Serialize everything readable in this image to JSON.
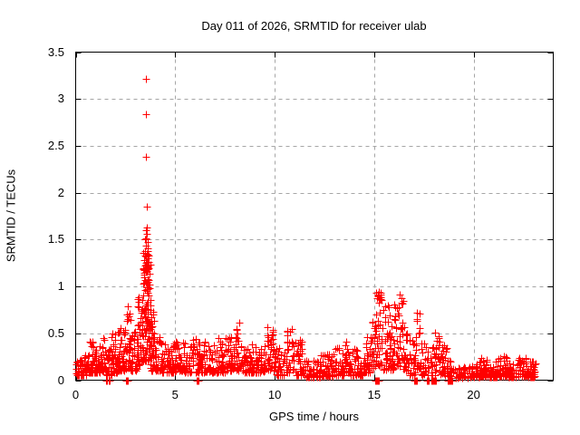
{
  "title": "Day 011 of 2026, SRMTID for receiver ulab",
  "xlabel": "GPS time / hours",
  "ylabel": "SRMTID / TECUs",
  "colors": {
    "background": "#ffffff",
    "marker": "#ff0000",
    "axis": "#000000",
    "grid": "#a6a6a6",
    "text": "#000000"
  },
  "chart_data": {
    "type": "scatter",
    "title": "Day 011 of 2026, SRMTID for receiver ulab",
    "xlabel": "GPS time / hours",
    "ylabel": "SRMTID / TECUs",
    "xlim": [
      0,
      24
    ],
    "ylim": [
      0,
      3.5
    ],
    "xticks": [
      0,
      5,
      10,
      15,
      20
    ],
    "yticks": [
      0,
      0.5,
      1,
      1.5,
      2,
      2.5,
      3,
      3.5
    ],
    "grid": true,
    "legend": "none",
    "marker": "plus",
    "marker_color": "#ff0000",
    "marker_size_px": 9,
    "note": "Dense GPS-TID scatter (~2000 epochs). Band represented as time segments [hour_start, hour_end, n_points, y_min, y_max, skew]; values cluster toward y_min. Peak event near 3.5 h reaching 3.21 TECUs; secondary activity 15-17 h up to ~0.95; quiet dip near 12 h and after 19 h. zero_clusters are groups of points at exactly 0 TECUs on the axis.",
    "segments": [
      [
        0.0,
        0.3,
        25,
        0.05,
        0.22
      ],
      [
        0.3,
        0.6,
        30,
        0.05,
        0.3
      ],
      [
        0.6,
        0.9,
        32,
        0.08,
        0.42
      ],
      [
        0.9,
        1.2,
        32,
        0.08,
        0.36
      ],
      [
        1.2,
        1.5,
        32,
        0.1,
        0.46
      ],
      [
        1.5,
        1.8,
        28,
        0.05,
        0.35
      ],
      [
        1.8,
        2.1,
        32,
        0.08,
        0.5
      ],
      [
        2.1,
        2.35,
        28,
        0.1,
        0.58
      ],
      [
        2.35,
        2.6,
        28,
        0.1,
        0.7
      ],
      [
        2.6,
        2.8,
        24,
        0.1,
        0.82
      ],
      [
        2.8,
        3.1,
        28,
        0.1,
        0.56
      ],
      [
        3.1,
        3.35,
        32,
        0.15,
        0.92,
        1.5
      ],
      [
        3.35,
        3.55,
        55,
        0.2,
        1.52,
        1.3
      ],
      [
        3.55,
        3.75,
        55,
        0.15,
        1.38,
        1.3
      ],
      [
        3.75,
        3.95,
        32,
        0.1,
        0.8,
        1.5
      ],
      [
        3.95,
        4.3,
        32,
        0.1,
        0.46
      ],
      [
        4.3,
        5.0,
        55,
        0.08,
        0.4
      ],
      [
        5.0,
        5.5,
        40,
        0.1,
        0.42
      ],
      [
        5.5,
        6.2,
        50,
        0.08,
        0.45
      ],
      [
        6.2,
        7.0,
        58,
        0.08,
        0.42
      ],
      [
        7.0,
        7.6,
        45,
        0.08,
        0.46
      ],
      [
        7.6,
        8.0,
        32,
        0.1,
        0.5
      ],
      [
        8.0,
        8.25,
        22,
        0.1,
        0.64,
        1.4
      ],
      [
        8.25,
        9.0,
        52,
        0.08,
        0.4
      ],
      [
        9.0,
        9.6,
        42,
        0.08,
        0.45
      ],
      [
        9.6,
        9.95,
        30,
        0.1,
        0.6,
        1.4
      ],
      [
        9.95,
        10.6,
        45,
        0.05,
        0.35
      ],
      [
        10.6,
        11.0,
        30,
        0.08,
        0.55
      ],
      [
        11.0,
        11.5,
        34,
        0.05,
        0.45
      ],
      [
        11.5,
        12.3,
        52,
        0.03,
        0.22
      ],
      [
        12.3,
        13.0,
        48,
        0.04,
        0.28
      ],
      [
        13.0,
        13.5,
        38,
        0.05,
        0.35
      ],
      [
        13.5,
        13.8,
        24,
        0.08,
        0.48
      ],
      [
        13.8,
        14.4,
        40,
        0.05,
        0.35
      ],
      [
        14.4,
        14.85,
        32,
        0.08,
        0.46
      ],
      [
        14.85,
        15.1,
        26,
        0.1,
        0.76,
        1.4
      ],
      [
        15.1,
        15.45,
        40,
        0.15,
        0.95,
        1.3
      ],
      [
        15.45,
        15.8,
        34,
        0.1,
        0.8,
        1.4
      ],
      [
        15.8,
        16.0,
        20,
        0.1,
        0.66,
        1.4
      ],
      [
        16.0,
        16.45,
        40,
        0.15,
        0.92,
        1.3
      ],
      [
        16.45,
        16.8,
        28,
        0.1,
        0.6
      ],
      [
        16.8,
        17.1,
        20,
        0.05,
        0.45
      ],
      [
        17.1,
        17.35,
        20,
        0.1,
        0.78,
        1.3
      ],
      [
        17.35,
        17.7,
        20,
        0.05,
        0.4
      ],
      [
        17.7,
        18.05,
        16,
        0.05,
        0.35
      ],
      [
        18.05,
        18.3,
        18,
        0.08,
        0.62,
        1.3
      ],
      [
        18.3,
        18.65,
        24,
        0.05,
        0.38
      ],
      [
        18.65,
        19.1,
        26,
        0.03,
        0.22
      ],
      [
        19.1,
        19.9,
        42,
        0.02,
        0.14
      ],
      [
        19.9,
        20.3,
        30,
        0.03,
        0.18
      ],
      [
        20.3,
        20.7,
        34,
        0.04,
        0.26
      ],
      [
        20.7,
        21.2,
        38,
        0.03,
        0.2
      ],
      [
        21.2,
        21.7,
        40,
        0.04,
        0.26
      ],
      [
        21.7,
        22.2,
        40,
        0.03,
        0.2
      ],
      [
        22.2,
        22.7,
        40,
        0.04,
        0.24
      ],
      [
        22.7,
        23.1,
        34,
        0.03,
        0.2
      ]
    ],
    "outliers": [
      [
        3.54,
        3.21
      ],
      [
        3.55,
        2.84
      ],
      [
        3.54,
        2.38
      ],
      [
        3.56,
        1.85
      ],
      [
        3.57,
        1.63
      ],
      [
        3.55,
        1.6
      ],
      [
        3.58,
        1.56
      ],
      [
        3.5,
        1.5
      ],
      [
        3.6,
        1.47
      ],
      [
        3.52,
        1.44
      ],
      [
        3.62,
        1.41
      ],
      [
        3.48,
        1.38
      ],
      [
        3.59,
        1.35
      ],
      [
        3.61,
        1.3
      ],
      [
        3.46,
        1.28
      ],
      [
        3.53,
        1.25
      ],
      [
        3.64,
        1.22
      ],
      [
        3.44,
        1.15
      ],
      [
        3.63,
        1.08
      ],
      [
        3.67,
        1.02
      ],
      [
        3.7,
        0.98
      ]
    ],
    "zero_clusters": [
      [
        1.52,
        1.62,
        7
      ],
      [
        1.66,
        1.74,
        6
      ],
      [
        2.52,
        2.62,
        7
      ],
      [
        6.08,
        6.16,
        7
      ],
      [
        15.05,
        15.26,
        12
      ],
      [
        17.03,
        17.18,
        9
      ],
      [
        17.58,
        17.72,
        6
      ],
      [
        17.85,
        18.1,
        12
      ],
      [
        18.64,
        18.92,
        9
      ]
    ]
  }
}
